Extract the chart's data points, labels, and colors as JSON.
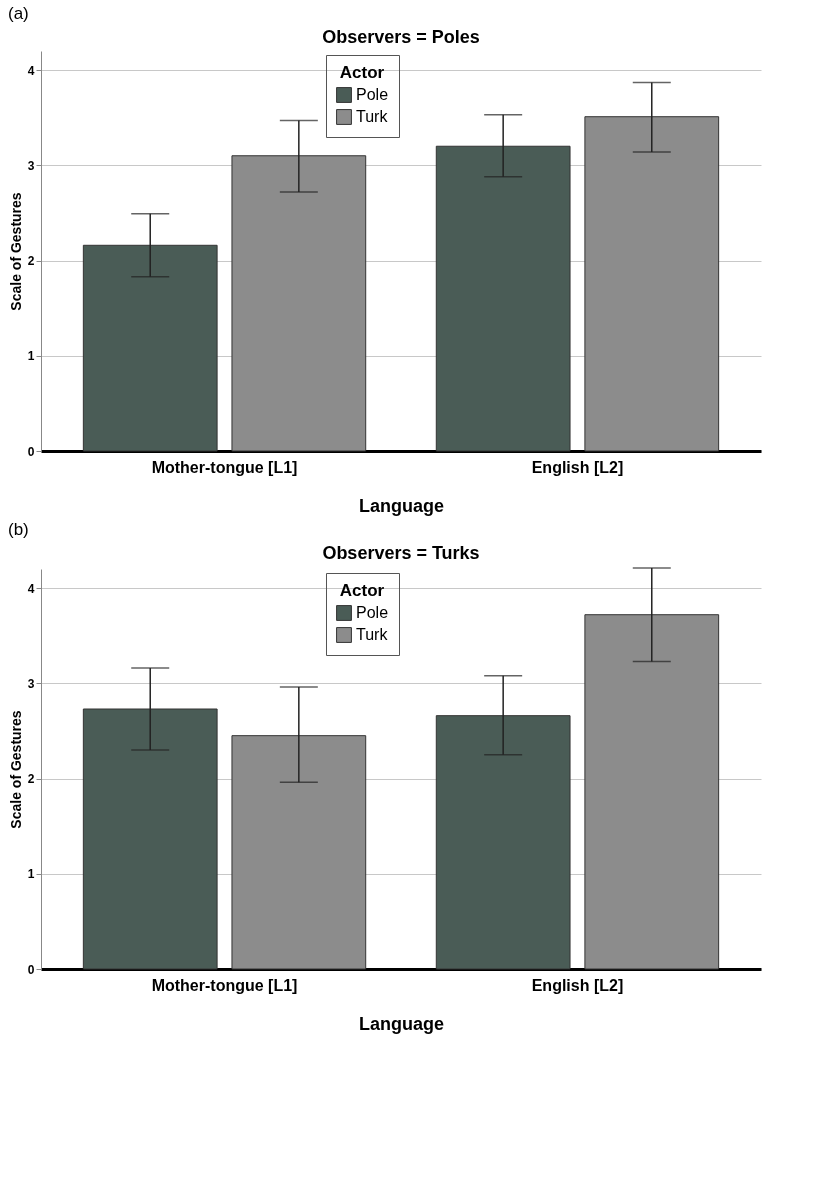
{
  "chart_data": [
    {
      "type": "bar",
      "title": "Observers = Poles",
      "xlabel": "Language",
      "ylabel": "Scale of Gestures",
      "legend_title": "Actor",
      "annotations": [
        "(a)"
      ],
      "categories": [
        "Mother-tongue [L1]",
        "English [L2]"
      ],
      "ylim": [
        0,
        4.2
      ],
      "yticks": [
        0,
        1,
        2,
        3,
        4
      ],
      "grid": "y",
      "legend": "top",
      "series": [
        {
          "name": "Pole",
          "color": "#4a5c56",
          "values": [
            2.16,
            3.2
          ],
          "errors": [
            [
              1.83,
              2.49
            ],
            [
              2.88,
              3.53
            ]
          ]
        },
        {
          "name": "Turk",
          "color": "#8c8c8c",
          "values": [
            3.1,
            3.51
          ],
          "errors": [
            [
              2.72,
              3.47
            ],
            [
              3.14,
              3.87
            ]
          ]
        }
      ]
    },
    {
      "type": "bar",
      "title": "Observers = Turks",
      "xlabel": "Language",
      "ylabel": "Scale of Gestures",
      "legend_title": "Actor",
      "annotations": [
        "(b)"
      ],
      "categories": [
        "Mother-tongue [L1]",
        "English [L2]"
      ],
      "ylim": [
        0,
        4.2
      ],
      "yticks": [
        0,
        1,
        2,
        3,
        4
      ],
      "grid": "y",
      "legend": "top",
      "series": [
        {
          "name": "Pole",
          "color": "#4a5c56",
          "values": [
            2.73,
            2.66
          ],
          "errors": [
            [
              2.3,
              3.16
            ],
            [
              2.25,
              3.08
            ]
          ]
        },
        {
          "name": "Turk",
          "color": "#8c8c8c",
          "values": [
            2.45,
            3.72
          ],
          "errors": [
            [
              1.96,
              2.96
            ],
            [
              3.23,
              4.21
            ]
          ]
        }
      ]
    }
  ]
}
